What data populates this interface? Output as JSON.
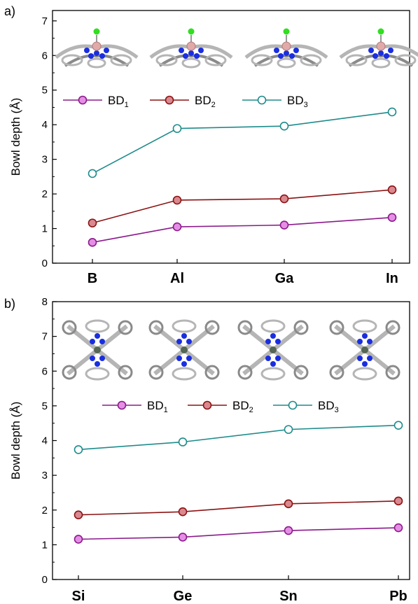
{
  "colors": {
    "BD1": "#8b1a8b",
    "BD1_fill": "#e58ee5",
    "BD2": "#8b1212",
    "BD2_fill": "#d9898f",
    "BD3": "#1e8b8b",
    "BD3_fill": "#ffffff"
  },
  "icons": [
    "molecule-structure-side-view",
    "molecule-structure-top-view"
  ],
  "chart_data": [
    {
      "type": "line",
      "panel_label": "a)",
      "categories": [
        "B",
        "Al",
        "Ga",
        "In"
      ],
      "ylabel": "Bowl depth (Å)",
      "ylim": [
        0,
        7.3
      ],
      "yticks": [
        "0",
        "1",
        "2",
        "3",
        "4",
        "5",
        "6",
        "7"
      ],
      "legend": [
        {
          "base": "BD",
          "sub": "1"
        },
        {
          "base": "BD",
          "sub": "2"
        },
        {
          "base": "BD",
          "sub": "3"
        }
      ],
      "series": [
        {
          "key": "BD1",
          "values": [
            0.6,
            1.05,
            1.1,
            1.32
          ]
        },
        {
          "key": "BD2",
          "values": [
            1.16,
            1.82,
            1.86,
            2.12
          ]
        },
        {
          "key": "BD3",
          "values": [
            2.59,
            3.89,
            3.96,
            4.37
          ]
        }
      ]
    },
    {
      "type": "line",
      "panel_label": "b)",
      "categories": [
        "Si",
        "Ge",
        "Sn",
        "Pb"
      ],
      "ylabel": "Bowl depth (Å)",
      "ylim": [
        0,
        8
      ],
      "yticks": [
        "0",
        "1",
        "2",
        "3",
        "4",
        "5",
        "6",
        "7",
        "8"
      ],
      "legend": [
        {
          "base": "BD",
          "sub": "1"
        },
        {
          "base": "BD",
          "sub": "2"
        },
        {
          "base": "BD",
          "sub": "3"
        }
      ],
      "series": [
        {
          "key": "BD1",
          "values": [
            1.16,
            1.22,
            1.41,
            1.49
          ]
        },
        {
          "key": "BD2",
          "values": [
            1.86,
            1.95,
            2.18,
            2.26
          ]
        },
        {
          "key": "BD3",
          "values": [
            3.74,
            3.96,
            4.32,
            4.44
          ]
        }
      ]
    }
  ]
}
